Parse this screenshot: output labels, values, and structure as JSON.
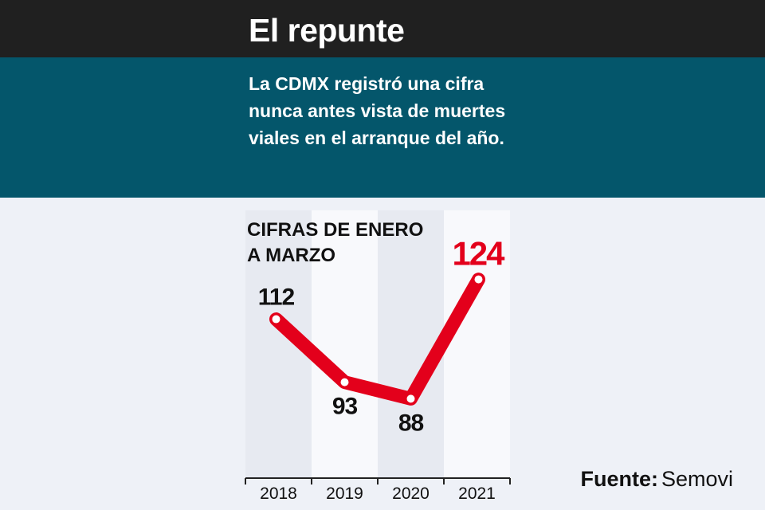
{
  "header": {
    "title": "El repunte",
    "subtitle": "La CDMX registró una cifra nunca antes vista de muertes viales en el arranque del año."
  },
  "source": {
    "label": "Fuente:",
    "value": "Semovi"
  },
  "colors": {
    "header_bg": "#202020",
    "subtitle_bg": "#04566b",
    "line": "#e3001b",
    "highlight_label": "#e3001b",
    "label": "#111111"
  },
  "chart_data": {
    "type": "line",
    "title": "CIFRAS DE ENERO A MARZO",
    "title_lines": [
      "CIFRAS DE ENERO",
      "A MARZO"
    ],
    "categories": [
      "2018",
      "2019",
      "2020",
      "2021"
    ],
    "series": [
      {
        "values": [
          112,
          93,
          88,
          124
        ]
      }
    ],
    "data_labels": [
      "112",
      "93",
      "88",
      "124"
    ],
    "highlight_index": 3,
    "ylim": [
      78,
      128
    ],
    "grid": false,
    "legend": false
  }
}
